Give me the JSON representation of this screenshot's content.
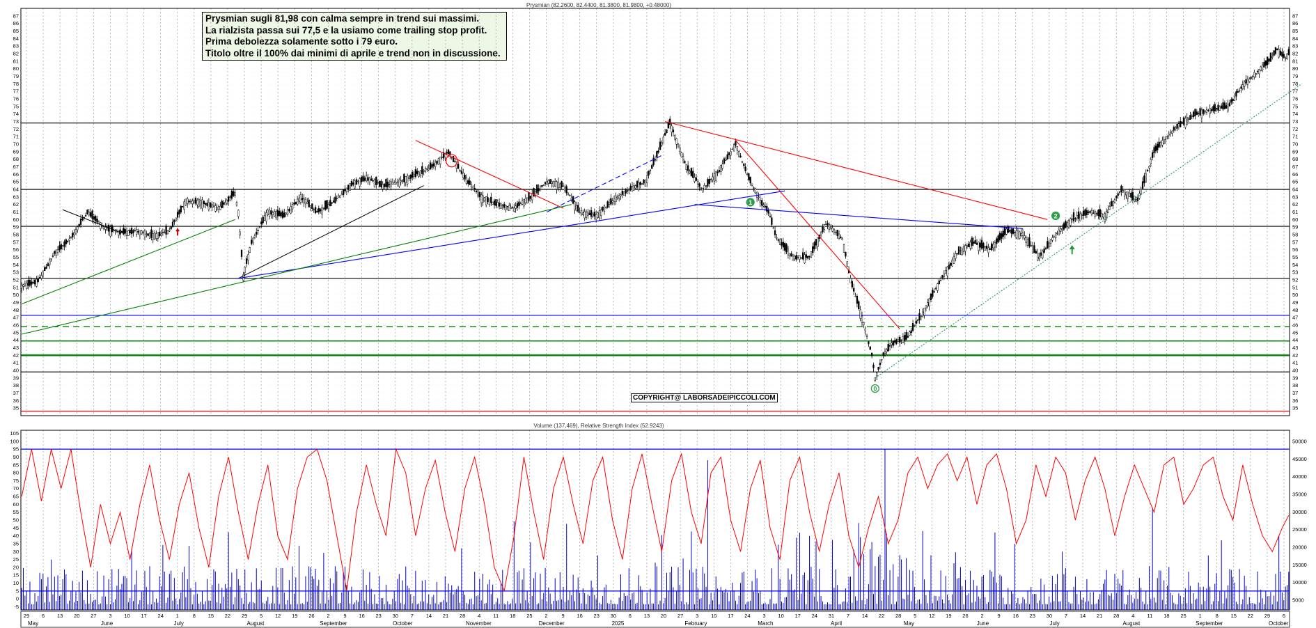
{
  "header": {
    "price_title": "Prysmian (82.2600, 82.4400, 81.3800, 81.9800, +0.48000)",
    "indicator_title": "Volume (137,469), Relative Strength Index (52.9243)"
  },
  "annotation": {
    "lines": [
      "Prysmian sugli 81,98 con calma sempre in trend sui massimi.",
      "La rialzista passa sui 77,5 e la usiamo come trailing stop profit.",
      "Prima debolezza solamente sotto i 79 euro.",
      "Titolo oltre il 100% dai minimi di aprile e trend non in discussione."
    ]
  },
  "watermark": "COPYRIGHT@ LABORSADEIPICCOLI.COM",
  "wave_labels": [
    "0",
    "1",
    "2"
  ],
  "colors": {
    "up_candle": "#ffffff",
    "down_candle": "#000000",
    "resistance": "#000000",
    "red_trend": "#ff0000",
    "blue_trend": "#0000ff",
    "green_trend": "#008000",
    "rsi_line": "#ff0000",
    "volume_bar": "#0000cc",
    "wave_label": "#2e9e4a"
  },
  "x_axis": {
    "day_ticks": [
      "29",
      "6",
      "13",
      "20",
      "27",
      "3",
      "10",
      "17",
      "24",
      "1",
      "8",
      "15",
      "22",
      "29",
      "5",
      "12",
      "19",
      "26",
      "2",
      "9",
      "16",
      "23",
      "30",
      "7",
      "14",
      "21",
      "28",
      "4",
      "11",
      "18",
      "25",
      "2",
      "9",
      "16",
      "23",
      "30",
      "6",
      "13",
      "20",
      "27",
      "3",
      "10",
      "17",
      "24",
      "3",
      "10",
      "17",
      "24",
      "31",
      "7",
      "14",
      "22",
      "28",
      "5",
      "12",
      "19",
      "26",
      "2",
      "9",
      "16",
      "23",
      "30",
      "7",
      "14",
      "21",
      "28",
      "4",
      "11",
      "18",
      "25",
      "1",
      "8",
      "15",
      "22",
      "29",
      "6"
    ],
    "months": [
      "May",
      "June",
      "July",
      "August",
      "September",
      "October",
      "November",
      "December",
      "2025",
      "February",
      "March",
      "April",
      "May",
      "June",
      "July",
      "August",
      "September",
      "October"
    ]
  },
  "chart_data": [
    {
      "type": "candlestick",
      "title": "Prysmian (82.2600, 82.4400, 81.3800, 81.9800, +0.48000)",
      "ylim": [
        34,
        88
      ],
      "y_ticks": [
        35,
        36,
        37,
        38,
        39,
        40,
        41,
        42,
        43,
        44,
        45,
        46,
        47,
        48,
        49,
        50,
        51,
        52,
        53,
        54,
        55,
        56,
        57,
        58,
        59,
        60,
        61,
        62,
        63,
        64,
        65,
        66,
        67,
        68,
        69,
        70,
        71,
        72,
        73,
        74,
        75,
        76,
        77,
        78,
        79,
        80,
        81,
        82,
        83,
        84,
        85,
        86,
        87
      ],
      "ohlc_last": {
        "open": 82.26,
        "high": 82.44,
        "low": 81.38,
        "close": 81.98,
        "change": 0.48
      },
      "close_path_anchors": [
        [
          0,
          51.2
        ],
        [
          10,
          51.8
        ],
        [
          20,
          55.5
        ],
        [
          30,
          57.5
        ],
        [
          40,
          61.0
        ],
        [
          50,
          59.0
        ],
        [
          60,
          58.2
        ],
        [
          70,
          58.5
        ],
        [
          80,
          57.8
        ],
        [
          90,
          58.5
        ],
        [
          100,
          62.5
        ],
        [
          110,
          62.3
        ],
        [
          120,
          61.5
        ],
        [
          130,
          63.5
        ],
        [
          132,
          61.0
        ],
        [
          135,
          52.5
        ],
        [
          140,
          57.0
        ],
        [
          150,
          61.0
        ],
        [
          160,
          60.5
        ],
        [
          170,
          63.0
        ],
        [
          180,
          61.0
        ],
        [
          190,
          62.3
        ],
        [
          200,
          64.5
        ],
        [
          210,
          65.5
        ],
        [
          220,
          64.5
        ],
        [
          230,
          65.0
        ],
        [
          240,
          66.0
        ],
        [
          250,
          67.0
        ],
        [
          260,
          69.0
        ],
        [
          270,
          65.5
        ],
        [
          280,
          63.0
        ],
        [
          290,
          62.0
        ],
        [
          300,
          61.5
        ],
        [
          310,
          63.0
        ],
        [
          320,
          65.0
        ],
        [
          330,
          64.5
        ],
        [
          340,
          61.0
        ],
        [
          350,
          60.5
        ],
        [
          360,
          62.5
        ],
        [
          370,
          64.0
        ],
        [
          380,
          65.0
        ],
        [
          387,
          68.5
        ],
        [
          395,
          72.8
        ],
        [
          405,
          67.0
        ],
        [
          415,
          64.0
        ],
        [
          425,
          66.5
        ],
        [
          435,
          70.0
        ],
        [
          442,
          66.0
        ],
        [
          450,
          62.5
        ],
        [
          455,
          61.0
        ],
        [
          460,
          57.5
        ],
        [
          470,
          55.0
        ],
        [
          480,
          55.0
        ],
        [
          490,
          59.5
        ],
        [
          500,
          57.5
        ],
        [
          505,
          52.0
        ],
        [
          512,
          47.0
        ],
        [
          518,
          42.0
        ],
        [
          520,
          39.0
        ],
        [
          525,
          42.0
        ],
        [
          530,
          43.5
        ],
        [
          540,
          44.5
        ],
        [
          550,
          48.0
        ],
        [
          560,
          52.0
        ],
        [
          570,
          55.5
        ],
        [
          580,
          57.0
        ],
        [
          590,
          56.0
        ],
        [
          600,
          58.5
        ],
        [
          610,
          58.0
        ],
        [
          620,
          55.0
        ],
        [
          630,
          58.0
        ],
        [
          640,
          60.0
        ],
        [
          650,
          61.0
        ],
        [
          660,
          60.5
        ],
        [
          670,
          64.0
        ],
        [
          680,
          62.5
        ],
        [
          690,
          69.0
        ],
        [
          700,
          71.5
        ],
        [
          705,
          72.5
        ],
        [
          715,
          74.0
        ],
        [
          725,
          74.5
        ],
        [
          735,
          75.0
        ],
        [
          745,
          78.0
        ],
        [
          755,
          80.0
        ],
        [
          760,
          81.0
        ],
        [
          765,
          82.5
        ],
        [
          770,
          81.5
        ],
        [
          772,
          82.0
        ]
      ],
      "horizontal_levels": [
        {
          "value": 72.8,
          "style": "black"
        },
        {
          "value": 64.0,
          "style": "black"
        },
        {
          "value": 59.1,
          "style": "black"
        },
        {
          "value": 52.2,
          "style": "black"
        },
        {
          "value": 47.3,
          "style": "blue"
        },
        {
          "value": 45.8,
          "style": "green-dashed"
        },
        {
          "value": 43.9,
          "style": "green"
        },
        {
          "value": 42.0,
          "style": "green-thick"
        },
        {
          "value": 39.8,
          "style": "black"
        },
        {
          "value": 34.6,
          "style": "red"
        }
      ],
      "trend_lines": [
        {
          "color": "black",
          "points": [
            [
              25,
              61.3
            ],
            [
              60,
              58.3
            ]
          ]
        },
        {
          "color": "black",
          "points": [
            [
              132,
              52.2
            ],
            [
              245,
              64.5
            ]
          ]
        },
        {
          "color": "red",
          "points": [
            [
              240,
              70.5
            ],
            [
              330,
              61.5
            ]
          ]
        },
        {
          "color": "red",
          "points": [
            [
              392,
              73.0
            ],
            [
              625,
              60.0
            ]
          ]
        },
        {
          "color": "red",
          "points": [
            [
              435,
              70.5
            ],
            [
              535,
              45.5
            ]
          ]
        },
        {
          "color": "blue",
          "points": [
            [
              132,
              52.2
            ],
            [
              465,
              63.8
            ]
          ]
        },
        {
          "color": "blue",
          "points": [
            [
              410,
              62.0
            ],
            [
              610,
              58.8
            ]
          ]
        },
        {
          "color": "blue-dashed",
          "points": [
            [
              320,
              61.0
            ],
            [
              390,
              68.5
            ]
          ]
        },
        {
          "color": "green",
          "points": [
            [
              0,
              48.8
            ],
            [
              130,
              60.0
            ]
          ]
        },
        {
          "color": "green",
          "points": [
            [
              0,
              44.8
            ],
            [
              335,
              62.0
            ]
          ]
        },
        {
          "color": "green-dotted",
          "points": [
            [
              520,
              39.0
            ],
            [
              780,
              78.0
            ]
          ]
        }
      ]
    },
    {
      "type": "bar+line",
      "title": "Volume (137,469), Relative Strength Index (52.9243)",
      "left_ticks": [
        -5,
        0,
        5,
        10,
        15,
        20,
        25,
        30,
        35,
        40,
        45,
        50,
        55,
        60,
        65,
        70,
        75,
        80,
        85,
        90,
        95,
        100,
        105
      ],
      "right_ticks": [
        5000,
        10000,
        15000,
        20000,
        25000,
        30000,
        35000,
        40000,
        45000,
        50000
      ],
      "rsi_reference_levels": [
        95,
        5
      ],
      "rsi_last": 52.9243,
      "volume_last": 137469,
      "rsi_anchors": [
        [
          0,
          65
        ],
        [
          6,
          95
        ],
        [
          12,
          62
        ],
        [
          18,
          95
        ],
        [
          24,
          70
        ],
        [
          30,
          95
        ],
        [
          36,
          55
        ],
        [
          42,
          20
        ],
        [
          48,
          60
        ],
        [
          54,
          35
        ],
        [
          60,
          55
        ],
        [
          66,
          25
        ],
        [
          72,
          60
        ],
        [
          78,
          85
        ],
        [
          84,
          50
        ],
        [
          90,
          25
        ],
        [
          96,
          60
        ],
        [
          102,
          80
        ],
        [
          108,
          45
        ],
        [
          114,
          20
        ],
        [
          120,
          65
        ],
        [
          126,
          90
        ],
        [
          132,
          55
        ],
        [
          138,
          25
        ],
        [
          144,
          60
        ],
        [
          150,
          85
        ],
        [
          156,
          40
        ],
        [
          162,
          25
        ],
        [
          168,
          70
        ],
        [
          174,
          90
        ],
        [
          180,
          95
        ],
        [
          186,
          75
        ],
        [
          192,
          40
        ],
        [
          198,
          5
        ],
        [
          204,
          55
        ],
        [
          210,
          85
        ],
        [
          216,
          60
        ],
        [
          222,
          40
        ],
        [
          228,
          95
        ],
        [
          234,
          80
        ],
        [
          240,
          40
        ],
        [
          246,
          70
        ],
        [
          252,
          88
        ],
        [
          258,
          55
        ],
        [
          264,
          30
        ],
        [
          270,
          70
        ],
        [
          276,
          90
        ],
        [
          282,
          60
        ],
        [
          288,
          20
        ],
        [
          294,
          5
        ],
        [
          300,
          40
        ],
        [
          306,
          90
        ],
        [
          312,
          55
        ],
        [
          318,
          25
        ],
        [
          324,
          70
        ],
        [
          330,
          90
        ],
        [
          336,
          60
        ],
        [
          342,
          35
        ],
        [
          348,
          75
        ],
        [
          354,
          90
        ],
        [
          360,
          50
        ],
        [
          366,
          25
        ],
        [
          372,
          70
        ],
        [
          378,
          92
        ],
        [
          384,
          60
        ],
        [
          390,
          30
        ],
        [
          396,
          75
        ],
        [
          402,
          92
        ],
        [
          408,
          55
        ],
        [
          414,
          35
        ],
        [
          420,
          80
        ],
        [
          426,
          90
        ],
        [
          432,
          50
        ],
        [
          438,
          30
        ],
        [
          444,
          70
        ],
        [
          450,
          88
        ],
        [
          456,
          45
        ],
        [
          462,
          25
        ],
        [
          468,
          75
        ],
        [
          474,
          90
        ],
        [
          480,
          55
        ],
        [
          486,
          30
        ],
        [
          492,
          60
        ],
        [
          498,
          80
        ],
        [
          504,
          40
        ],
        [
          510,
          20
        ],
        [
          516,
          45
        ],
        [
          522,
          65
        ],
        [
          528,
          35
        ],
        [
          534,
          50
        ],
        [
          540,
          80
        ],
        [
          546,
          90
        ],
        [
          552,
          70
        ],
        [
          558,
          85
        ],
        [
          564,
          92
        ],
        [
          570,
          75
        ],
        [
          576,
          90
        ],
        [
          582,
          60
        ],
        [
          588,
          85
        ],
        [
          594,
          92
        ],
        [
          600,
          70
        ],
        [
          606,
          35
        ],
        [
          612,
          50
        ],
        [
          618,
          85
        ],
        [
          624,
          65
        ],
        [
          630,
          90
        ],
        [
          636,
          80
        ],
        [
          642,
          50
        ],
        [
          648,
          75
        ],
        [
          654,
          90
        ],
        [
          660,
          70
        ],
        [
          666,
          40
        ],
        [
          672,
          65
        ],
        [
          678,
          85
        ],
        [
          684,
          70
        ],
        [
          690,
          55
        ],
        [
          696,
          85
        ],
        [
          702,
          90
        ],
        [
          708,
          60
        ],
        [
          714,
          70
        ],
        [
          720,
          85
        ],
        [
          726,
          90
        ],
        [
          732,
          65
        ],
        [
          738,
          50
        ],
        [
          744,
          85
        ],
        [
          750,
          60
        ],
        [
          756,
          40
        ],
        [
          762,
          30
        ],
        [
          768,
          45
        ],
        [
          772,
          53
        ]
      ]
    }
  ]
}
